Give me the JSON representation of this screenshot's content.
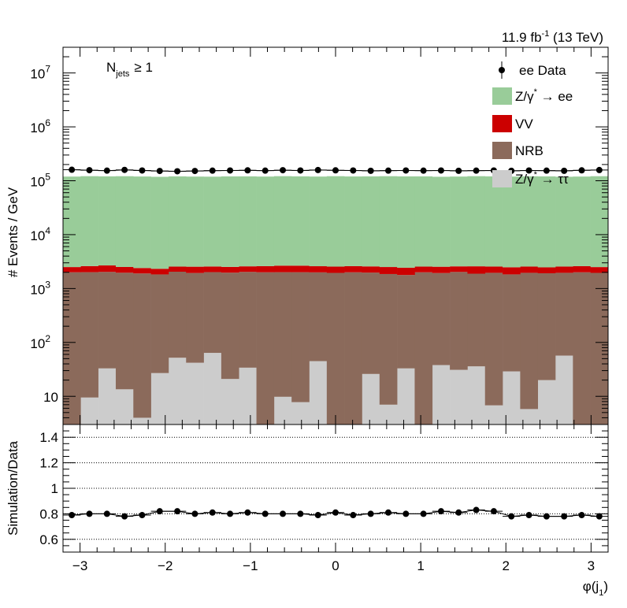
{
  "chart_data": [
    {
      "type": "bar",
      "stacked": true,
      "ylabel": "# Events / GeV",
      "yscale": "log",
      "ylim": [
        3,
        30000000
      ],
      "xlim": [
        -3.2,
        3.2
      ],
      "luminosity": "11.9 fb",
      "luminosity_sup": "-1",
      "energy": " (13 TeV)",
      "selection_main": "N",
      "selection_sub": "jets",
      "selection_cond": "≥ 1",
      "y_ticks": [
        {
          "value": 10,
          "base": "10",
          "exp": ""
        },
        {
          "value": 100,
          "base": "10",
          "exp": "2"
        },
        {
          "value": 1000,
          "base": "10",
          "exp": "3"
        },
        {
          "value": 10000,
          "base": "10",
          "exp": "4"
        },
        {
          "value": 100000,
          "base": "10",
          "exp": "5"
        },
        {
          "value": 1000000,
          "base": "10",
          "exp": "6"
        },
        {
          "value": 10000000,
          "base": "10",
          "exp": "7"
        }
      ],
      "bin_edges": [
        -3.2,
        -2.9935,
        -2.787,
        -2.5806,
        -2.3742,
        -2.1677,
        -1.9613,
        -1.7548,
        -1.5484,
        -1.3419,
        -1.1355,
        -0.929,
        -0.7226,
        -0.5161,
        -0.3097,
        -0.1032,
        0.1032,
        0.3097,
        0.5161,
        0.7226,
        0.929,
        1.1355,
        1.3419,
        1.5484,
        1.7548,
        1.9613,
        2.1677,
        2.3742,
        2.5806,
        2.787,
        2.9935,
        3.2
      ],
      "series": [
        {
          "name": "Z/γ → ττ",
          "label_main": "Z/γ",
          "label_sup": "*",
          "label_rest": " → ττ",
          "color": "#cccccc",
          "values": [
            3,
            9.5,
            33,
            13.5,
            4,
            27,
            52,
            42,
            64,
            21,
            34,
            3,
            9.8,
            7.8,
            45,
            2,
            2,
            26,
            7,
            33,
            2,
            38,
            31,
            36,
            6.8,
            29,
            5.8,
            20,
            57,
            2,
            2
          ]
        },
        {
          "name": "NRB",
          "label_main": "NRB",
          "color": "#8b6a5b",
          "values": [
            2000,
            2000,
            2000,
            1950,
            1900,
            1800,
            2000,
            1900,
            1950,
            1950,
            2000,
            2000,
            2000,
            2000,
            1950,
            1950,
            2000,
            1950,
            1850,
            1750,
            2000,
            1900,
            2000,
            1850,
            1950,
            1800,
            1950,
            1900,
            1900,
            2000,
            1950
          ]
        },
        {
          "name": "VV",
          "label_main": "VV",
          "color": "#cc0000",
          "values": [
            500,
            600,
            650,
            550,
            500,
            500,
            500,
            600,
            550,
            550,
            550,
            600,
            650,
            650,
            600,
            600,
            600,
            600,
            650,
            650,
            550,
            600,
            550,
            700,
            600,
            650,
            600,
            550,
            600,
            600,
            550
          ]
        },
        {
          "name": "Z/γ* → ee",
          "label_main": "Z/γ",
          "label_sup": "*",
          "label_rest": " → ee",
          "color": "#99cc99",
          "values": [
            117000,
            119000,
            118000,
            119000,
            117500,
            116000,
            118000,
            117000,
            116500,
            118000,
            118000,
            117000,
            119000,
            118000,
            117000,
            119000,
            117500,
            118000,
            119000,
            118000,
            118000,
            116000,
            117000,
            119000,
            118000,
            117000,
            118500,
            118000,
            116000,
            117000,
            119000
          ]
        }
      ],
      "data": {
        "name": "ee Data",
        "label_main": "ee Data",
        "values": [
          160000,
          157000,
          154000,
          159000,
          155000,
          152000,
          150000,
          152000,
          154000,
          155000,
          156000,
          154000,
          157000,
          155000,
          158000,
          156000,
          155000,
          153000,
          154000,
          155000,
          154000,
          155000,
          153000,
          154000,
          155000,
          153000,
          155000,
          154000,
          153000,
          156000,
          158000
        ]
      }
    },
    {
      "type": "scatter",
      "ylabel": "Simulation/Data",
      "xlabel_main": "φ(j",
      "xlabel_sub": "1",
      "xlabel_rest": ")",
      "ylim": [
        0.5,
        1.5
      ],
      "xlim": [
        -3.2,
        3.2
      ],
      "y_ticks": [
        {
          "value": 0.6,
          "label": "0.6"
        },
        {
          "value": 0.8,
          "label": "0.8"
        },
        {
          "value": 1.0,
          "label": "1"
        },
        {
          "value": 1.2,
          "label": "1.2"
        },
        {
          "value": 1.4,
          "label": "1.4"
        }
      ],
      "x_ticks": [
        {
          "value": -3,
          "label": "−3"
        },
        {
          "value": -2,
          "label": "−2"
        },
        {
          "value": -1,
          "label": "−1"
        },
        {
          "value": 0,
          "label": "0"
        },
        {
          "value": 1,
          "label": "1"
        },
        {
          "value": 2,
          "label": "2"
        },
        {
          "value": 3,
          "label": "3"
        }
      ],
      "grid": true,
      "values": [
        0.79,
        0.8,
        0.8,
        0.78,
        0.79,
        0.82,
        0.82,
        0.8,
        0.81,
        0.8,
        0.81,
        0.8,
        0.8,
        0.8,
        0.79,
        0.81,
        0.79,
        0.8,
        0.81,
        0.8,
        0.8,
        0.82,
        0.81,
        0.83,
        0.82,
        0.78,
        0.79,
        0.78,
        0.78,
        0.79,
        0.78
      ]
    }
  ]
}
